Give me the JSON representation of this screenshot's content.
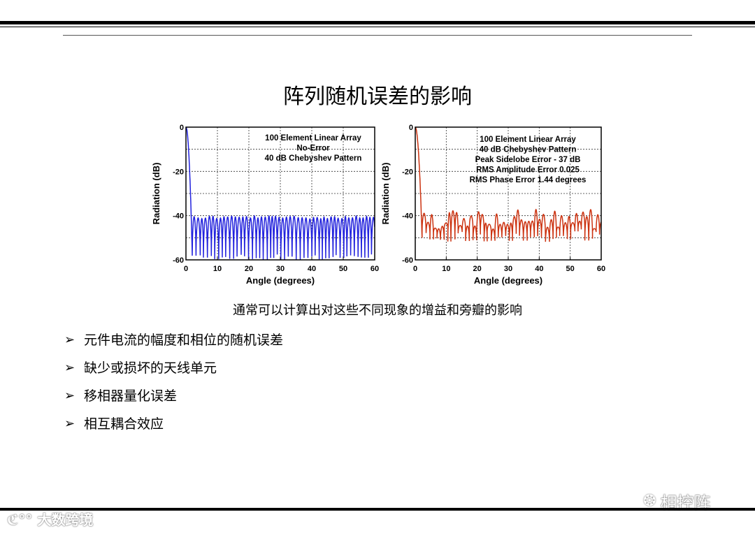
{
  "title": "阵列随机误差的影响",
  "caption": "通常可以计算出对这些不同现象的增益和旁瓣的影响",
  "bullets": [
    {
      "text": "元件电流的幅度和相位的随机误差"
    },
    {
      "text": "缺少或损坏的天线单元"
    },
    {
      "text": "移相器量化误差"
    },
    {
      "text": "相互耦合效应"
    }
  ],
  "watermark_left": "大数跨境",
  "watermark_right": "相控阵",
  "colors": {
    "left_series": "#2222dd",
    "right_series": "#cc3311"
  },
  "chart_data": [
    {
      "type": "line",
      "xlabel": "Angle (degrees)",
      "ylabel": "Radiation (dB)",
      "xlim": [
        0,
        60
      ],
      "ylim": [
        -60,
        0
      ],
      "xticks": [
        0,
        10,
        20,
        30,
        40,
        50,
        60
      ],
      "yticks": [
        0,
        -20,
        -40,
        -60
      ],
      "grid": true,
      "annotation": [
        "100 Element Linear Array",
        "No-Error",
        "40 dB Chebyshev Pattern"
      ],
      "series": [
        {
          "color": "#2222dd",
          "mainlobe_edge_deg": 2.0,
          "sidelobe_peak_db": -40,
          "null_floor_db": -60,
          "lobe_width_deg": 1.15
        }
      ]
    },
    {
      "type": "line",
      "xlabel": "Angle (degrees)",
      "ylabel": "Radiation (dB)",
      "xlim": [
        0,
        60
      ],
      "ylim": [
        -60,
        0
      ],
      "xticks": [
        0,
        10,
        20,
        30,
        40,
        50,
        60
      ],
      "yticks": [
        0,
        -20,
        -40,
        -60
      ],
      "grid": true,
      "annotation": [
        "100 Element Linear Array",
        "40 dB Chebyshev Pattern",
        "Peak Sidelobe Error - 37 dB",
        "RMS Amplitude Error 0.025",
        "RMS Phase Error 1.44 degrees"
      ],
      "series": [
        {
          "color": "#cc3311",
          "mainlobe_edge_deg": 2.2,
          "sidelobe_peak_db": -37,
          "sidelobe_mean_db": -43,
          "null_floor_db": -52,
          "lobe_width_deg": 1.15
        }
      ]
    }
  ]
}
